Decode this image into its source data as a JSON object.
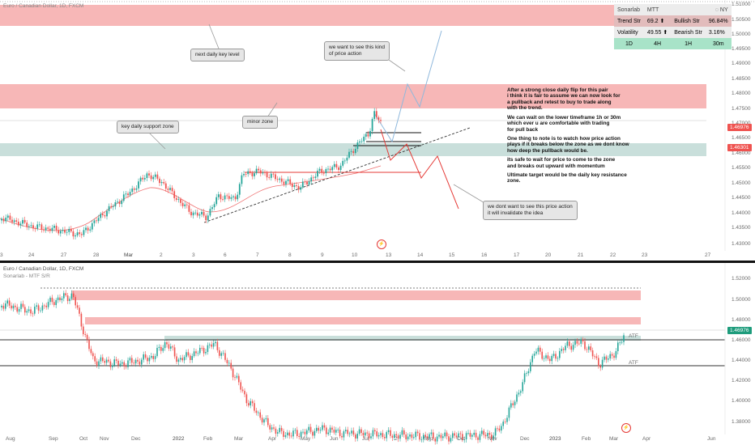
{
  "top_chart": {
    "symbol_title": "Euro / Canadian Dollar, 1D, FXCM",
    "price_scale": [
      "1.51000",
      "1.50500",
      "1.50000",
      "1.49500",
      "1.49000",
      "1.48500",
      "1.48000",
      "1.47500",
      "1.47000",
      "1.46500",
      "1.46000",
      "1.45500",
      "1.45000",
      "1.44500",
      "1.44000",
      "1.43500",
      "1.43000"
    ],
    "last_price": "1.46976",
    "support_price": "1.46301",
    "time_scale": [
      "3",
      "24",
      "27",
      "28",
      "Mar",
      "2",
      "3",
      "6",
      "7",
      "8",
      "9",
      "10",
      "13",
      "14",
      "15",
      "16",
      "17",
      "20",
      "21",
      "22",
      "23",
      "27"
    ]
  },
  "indicator_table": {
    "header": {
      "name": "Sonarlab",
      "mode": "MTT",
      "session": "NY"
    },
    "rows": [
      {
        "k1": "Trend Str",
        "v1": "69.2 ⬆",
        "k2": "Bullish Str",
        "v2": "96.84%"
      },
      {
        "k1": "Volatility",
        "v1": "49.55 ⬆",
        "k2": "Bearish Str",
        "v2": "3.16%"
      }
    ],
    "timeframes": [
      "1D",
      "4H",
      "1H",
      "30m"
    ]
  },
  "notes": {
    "next_daily_key_level": "next daily key level",
    "want_to_see": "we want to see this kind\nof price action",
    "key_daily_support_zone": "key daily support zone",
    "minor_zone": "minor zone",
    "dont_want_to_see": "we dont want to see this price action\nit will invalidate the idea"
  },
  "analysis": [
    "After a strong close daily flip for this pair\ni think it is fair to assume we can now look for\na pullback and retest to buy to trade along\nwith the trend.",
    "We can wait on the lower timeframe 1h or 30m\nwhich ever u are comfortable with trading\nfor pull back",
    "One thing to note is to watch how price action\nplays if it breaks below the zone as we dont know\nhow deep the pullback would be.",
    "its safe to wait for price to come to the zone\nand breaks out upward with momentum",
    "Ultimate target would be the daily key resistance\nzone."
  ],
  "bottom_chart": {
    "symbol_title": "Euro / Canadian Dollar, 1D, FXCM",
    "indicator_name": "Sonarlab - MTF S/R",
    "price_scale": [
      "1.52000",
      "1.50000",
      "1.48000",
      "1.46000",
      "1.44000",
      "1.42000",
      "1.40000",
      "1.38000"
    ],
    "last_price": "1.46976",
    "atf_labels": [
      "ATF",
      "ATF"
    ],
    "time_scale": [
      "Aug",
      "Sep",
      "Oct",
      "Nov",
      "Dec",
      "2022",
      "Feb",
      "Mar",
      "Apr",
      "May",
      "Jun",
      "Jul",
      "2",
      "Sep",
      "Oct",
      "Nov",
      "Dec",
      "2023",
      "Feb",
      "Mar",
      "Apr",
      "Jun"
    ]
  },
  "colors": {
    "up_candle": "#26a69a",
    "down_candle": "#ef5350",
    "resistance_zone": "#f7b7b7",
    "support_zone": "#c9dfdb",
    "bullish_path": "#8fb8dc",
    "bearish_path": "#e53935",
    "last_price_tag": "#ef5350",
    "support_tag": "#ef5350",
    "bottom_price_tag": "#1e9c7c"
  }
}
